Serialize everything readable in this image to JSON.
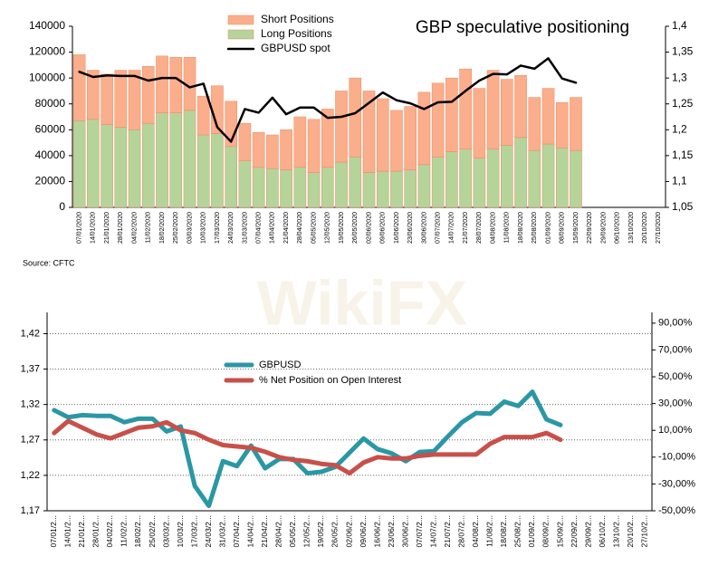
{
  "watermark": "WikiFX",
  "chart_data": [
    {
      "type": "bar",
      "stacked": true,
      "title": "GBP speculative positioning",
      "source": "Source: CFTC",
      "legend": "upper center",
      "categories": [
        "07/01/2020",
        "14/01/2020",
        "21/01/2020",
        "28/01/2020",
        "04/02/2020",
        "11/02/2020",
        "18/02/2020",
        "25/02/2020",
        "03/03/2020",
        "10/03/2020",
        "17/03/2020",
        "24/03/2020",
        "31/03/2020",
        "07/04/2020",
        "14/04/2020",
        "21/04/2020",
        "28/04/2020",
        "05/05/2020",
        "12/05/2020",
        "19/05/2020",
        "26/05/2020",
        "02/06/2020",
        "09/06/2020",
        "16/06/2020",
        "23/06/2020",
        "30/06/2020",
        "07/07/2020",
        "14/07/2020",
        "21/07/2020",
        "28/07/2020",
        "04/08/2020",
        "11/08/2020",
        "18/08/2020",
        "25/08/2020",
        "01/09/2020",
        "08/09/2020",
        "15/09/2020",
        "22/09/2020",
        "29/09/2020",
        "06/10/2020",
        "13/10/2020",
        "20/10/2020",
        "27/10/2020"
      ],
      "series": [
        {
          "name": "Short Positions",
          "color": "#fbae8c",
          "values": [
            51000,
            38000,
            39000,
            44000,
            46000,
            44000,
            44000,
            43000,
            41000,
            30000,
            37000,
            35000,
            29000,
            27000,
            26000,
            31000,
            39000,
            41000,
            45000,
            55000,
            61000,
            63000,
            56000,
            47000,
            49000,
            56000,
            57000,
            57000,
            62000,
            54000,
            61000,
            51000,
            48000,
            41000,
            43000,
            35000,
            41000,
            null,
            null,
            null,
            null,
            null,
            null
          ]
        },
        {
          "name": "Long Positions",
          "color": "#b5d49a",
          "values": [
            67000,
            68000,
            64000,
            62000,
            60000,
            65000,
            73000,
            73000,
            75000,
            56000,
            57000,
            47000,
            36000,
            31000,
            30000,
            29000,
            31000,
            27000,
            31000,
            35000,
            39000,
            27000,
            28000,
            28000,
            29000,
            33000,
            39000,
            43000,
            45000,
            38000,
            45000,
            48000,
            54000,
            44000,
            49000,
            46000,
            44000,
            null,
            null,
            null,
            null,
            null,
            null
          ]
        },
        {
          "name": "GBPUSD spot",
          "color": "#000000",
          "type": "line",
          "axis": "y2",
          "values": [
            1.312,
            1.302,
            1.305,
            1.304,
            1.304,
            1.295,
            1.3,
            1.3,
            1.282,
            1.289,
            1.205,
            1.177,
            1.24,
            1.233,
            1.262,
            1.23,
            1.243,
            1.243,
            1.223,
            1.225,
            1.232,
            1.252,
            1.272,
            1.257,
            1.251,
            1.24,
            1.253,
            1.254,
            1.275,
            1.295,
            1.308,
            1.307,
            1.324,
            1.318,
            1.338,
            1.299,
            1.291,
            null,
            null,
            null,
            null,
            null,
            null
          ]
        }
      ],
      "ylim": [
        0,
        140000
      ],
      "yticks": [
        0,
        20000,
        40000,
        60000,
        80000,
        100000,
        120000,
        140000
      ],
      "y2lim": [
        1.05,
        1.4
      ],
      "y2ticks": [
        {
          "value": 1.05,
          "label": "1,05"
        },
        {
          "value": 1.1,
          "label": "1,1"
        },
        {
          "value": 1.15,
          "label": "1,15"
        },
        {
          "value": 1.2,
          "label": "1,2"
        },
        {
          "value": 1.25,
          "label": "1,25"
        },
        {
          "value": 1.3,
          "label": "1,3"
        },
        {
          "value": 1.35,
          "label": "1,35"
        },
        {
          "value": 1.4,
          "label": "1,4"
        }
      ],
      "grid": false
    },
    {
      "type": "line",
      "legend": "upper left",
      "categories": [
        "07/01/2...",
        "14/01/2...",
        "21/01/2...",
        "28/01/2...",
        "04/02/2...",
        "11/02/2...",
        "18/02/2...",
        "25/02/2...",
        "03/03/2...",
        "10/03/2...",
        "17/03/2...",
        "24/03/2...",
        "31/03/2...",
        "07/04/2...",
        "14/04/2...",
        "21/04/2...",
        "28/04/2...",
        "05/05/2...",
        "12/05/2...",
        "19/05/2...",
        "26/05/2...",
        "02/06/2...",
        "09/06/2...",
        "16/06/2...",
        "23/06/2...",
        "30/06/2...",
        "07/07/2...",
        "14/07/2...",
        "21/07/2...",
        "28/07/2...",
        "04/08/2...",
        "11/08/2...",
        "18/08/2...",
        "25/08/2...",
        "01/09/2...",
        "08/09/2...",
        "15/09/2...",
        "22/09/2...",
        "29/09/2...",
        "06/10/2...",
        "13/10/2...",
        "20/10/2...",
        "27/10/2..."
      ],
      "series": [
        {
          "name": "GBPUSD",
          "color": "#2a97a5",
          "values": [
            1.312,
            1.302,
            1.305,
            1.304,
            1.304,
            1.295,
            1.3,
            1.3,
            1.282,
            1.289,
            1.205,
            1.177,
            1.24,
            1.233,
            1.262,
            1.23,
            1.243,
            1.243,
            1.223,
            1.225,
            1.232,
            1.252,
            1.272,
            1.257,
            1.251,
            1.24,
            1.253,
            1.254,
            1.275,
            1.295,
            1.308,
            1.307,
            1.324,
            1.318,
            1.338,
            1.299,
            1.291,
            null,
            null,
            null,
            null,
            null,
            null
          ]
        },
        {
          "name": "% Net Position on Open Interest",
          "color": "#c8504a",
          "axis": "y2",
          "values": [
            8,
            17,
            12,
            7,
            4,
            8,
            12,
            13,
            16,
            10,
            8,
            3,
            -1,
            -2,
            -3,
            -6,
            -10,
            -12,
            -13,
            -15,
            -16,
            -22,
            -14,
            -10,
            -11,
            -11,
            -9,
            -8,
            -8,
            -8,
            -8,
            0,
            5,
            5,
            5,
            8,
            3,
            null,
            null,
            null,
            null,
            null,
            null
          ]
        }
      ],
      "ylim": [
        1.17,
        1.45
      ],
      "yticks": [
        {
          "value": 1.17,
          "label": "1,17"
        },
        {
          "value": 1.22,
          "label": "1,22"
        },
        {
          "value": 1.27,
          "label": "1,27"
        },
        {
          "value": 1.32,
          "label": "1,32"
        },
        {
          "value": 1.37,
          "label": "1,37"
        },
        {
          "value": 1.42,
          "label": "1,42"
        }
      ],
      "y2lim": [
        -50,
        98
      ],
      "y2ticks": [
        {
          "value": -50,
          "label": "-50,00%"
        },
        {
          "value": -30,
          "label": "-30,00%"
        },
        {
          "value": -10,
          "label": "-10,00%"
        },
        {
          "value": 10,
          "label": "10,00%"
        },
        {
          "value": 30,
          "label": "30,00%"
        },
        {
          "value": 50,
          "label": "50,00%"
        },
        {
          "value": 70,
          "label": "70,00%"
        },
        {
          "value": 90,
          "label": "90,00%"
        }
      ],
      "grid": true
    }
  ]
}
